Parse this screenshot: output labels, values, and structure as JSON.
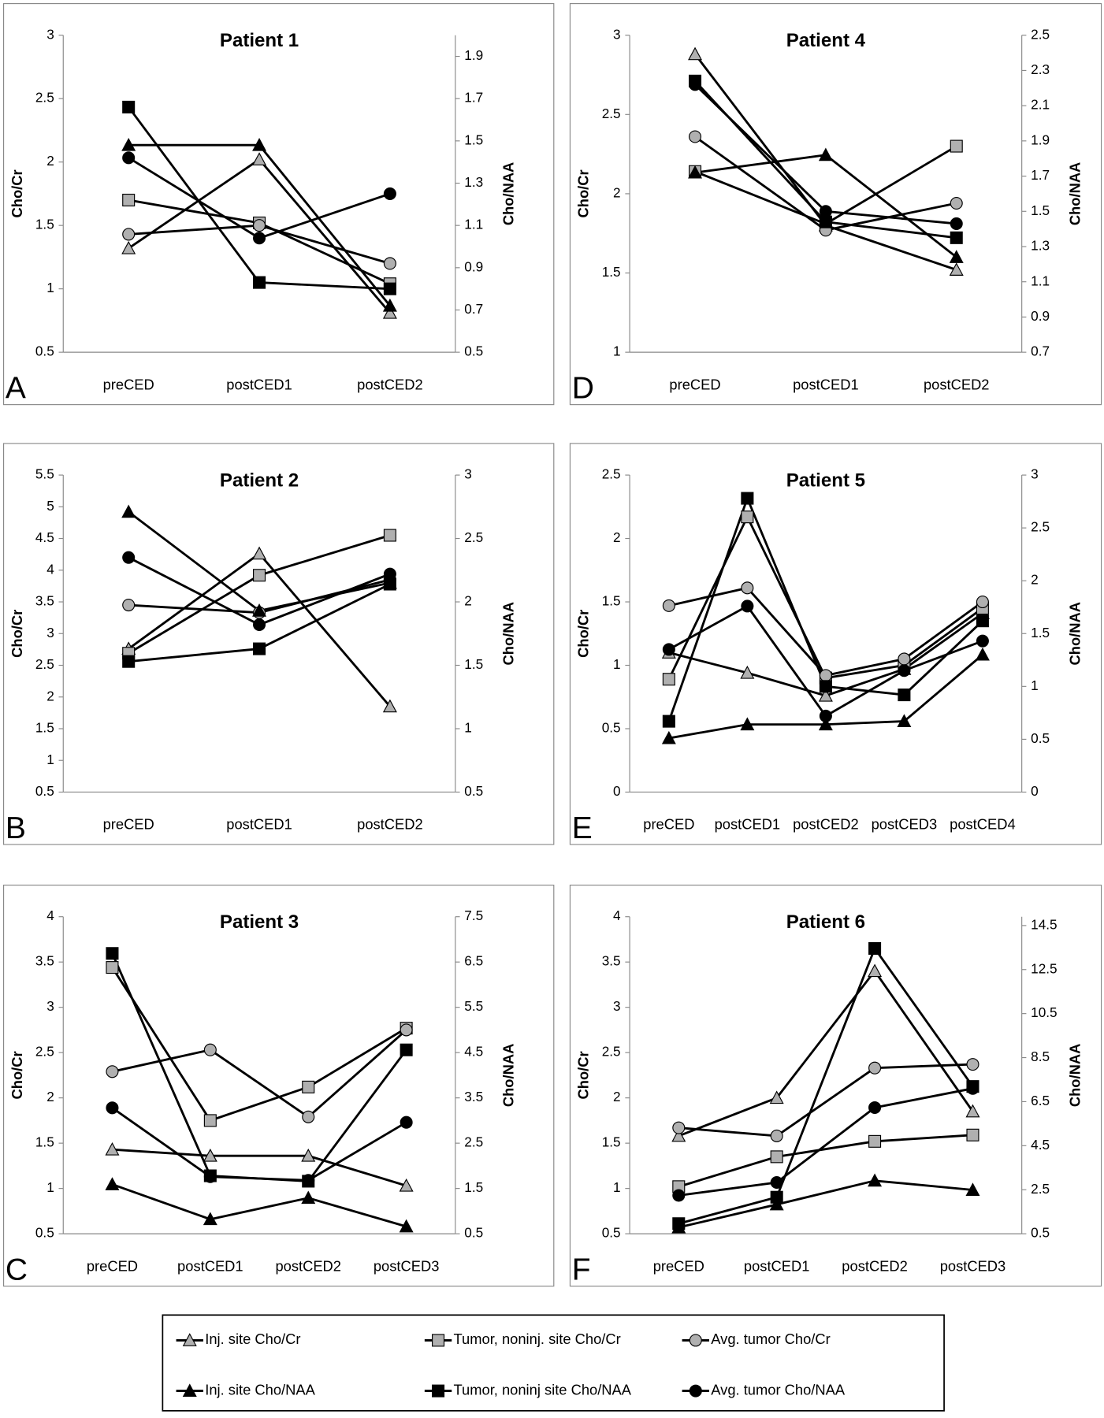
{
  "chart_data": [
    {
      "type": "line",
      "title": "Patient 1",
      "panel_label": "A",
      "y_label": "Cho/Cr",
      "y2_label": "Cho/NAA",
      "categories": [
        "preCED",
        "postCED1",
        "postCED2"
      ],
      "ylim": [
        0.5,
        3
      ],
      "yticks": [
        0.5,
        1,
        1.5,
        2,
        2.5,
        3
      ],
      "y2lim": [
        0.5,
        2.0
      ],
      "y2ticks": [
        0.5,
        0.7,
        0.9,
        1.1,
        1.3,
        1.5,
        1.7,
        1.9
      ],
      "series": [
        {
          "values": [
            1.32,
            2.02,
            0.81
          ]
        },
        {
          "values": [
            1.7,
            1.52,
            1.04
          ]
        },
        {
          "values": [
            1.43,
            1.5,
            1.2
          ]
        },
        {
          "axis": "y2",
          "values": [
            1.48,
            1.48,
            0.72
          ]
        },
        {
          "axis": "y2",
          "values": [
            1.66,
            0.83,
            0.8
          ]
        },
        {
          "axis": "y2",
          "values": [
            1.42,
            1.04,
            1.25
          ]
        }
      ]
    },
    {
      "type": "line",
      "title": "Patient 2",
      "panel_label": "B",
      "y_label": "Cho/Cr",
      "y2_label": "Cho/NAA",
      "categories": [
        "preCED",
        "postCED1",
        "postCED2"
      ],
      "ylim": [
        0.5,
        5.5
      ],
      "yticks": [
        0.5,
        1,
        1.5,
        2,
        2.5,
        3,
        3.5,
        4,
        4.5,
        5,
        5.5
      ],
      "y2lim": [
        0.5,
        3
      ],
      "y2ticks": [
        0.5,
        1,
        1.5,
        2,
        2.5,
        3
      ],
      "series": [
        {
          "values": [
            2.76,
            4.26,
            1.85
          ]
        },
        {
          "values": [
            2.69,
            3.92,
            4.55
          ]
        },
        {
          "values": [
            3.45,
            3.33,
            3.85
          ]
        },
        {
          "axis": "y2",
          "values": [
            2.71,
            1.93,
            2.15
          ]
        },
        {
          "axis": "y2",
          "values": [
            1.53,
            1.63,
            2.14
          ]
        },
        {
          "axis": "y2",
          "values": [
            2.35,
            1.82,
            2.22
          ]
        }
      ]
    },
    {
      "type": "line",
      "title": "Patient 3",
      "panel_label": "C",
      "y_label": "Cho/Cr",
      "y2_label": "Cho/NAA",
      "categories": [
        "preCED",
        "postCED1",
        "postCED2",
        "postCED3"
      ],
      "ylim": [
        0.5,
        4
      ],
      "yticks": [
        0.5,
        1,
        1.5,
        2,
        2.5,
        3,
        3.5,
        4
      ],
      "y2lim": [
        0.5,
        7.5
      ],
      "y2ticks": [
        0.5,
        1.5,
        2.5,
        3.5,
        4.5,
        5.5,
        6.5,
        7.5
      ],
      "series": [
        {
          "values": [
            1.43,
            1.36,
            1.36,
            1.03
          ]
        },
        {
          "values": [
            3.44,
            1.75,
            2.12,
            2.77
          ]
        },
        {
          "values": [
            2.29,
            2.53,
            1.79,
            2.75
          ]
        },
        {
          "axis": "y2",
          "values": [
            1.59,
            0.82,
            1.29,
            0.66
          ]
        },
        {
          "axis": "y2",
          "values": [
            6.69,
            1.78,
            1.66,
            4.56
          ]
        },
        {
          "axis": "y2",
          "values": [
            3.28,
            1.76,
            1.68,
            2.96
          ]
        }
      ]
    },
    {
      "type": "line",
      "title": "Patient 4",
      "panel_label": "D",
      "y_label": "Cho/Cr",
      "y2_label": "Cho/NAA",
      "categories": [
        "preCED",
        "postCED1",
        "postCED2"
      ],
      "ylim": [
        1,
        3
      ],
      "yticks": [
        1,
        1.5,
        2,
        2.5,
        3
      ],
      "y2lim": [
        0.7,
        2.5
      ],
      "y2ticks": [
        0.7,
        0.9,
        1.1,
        1.3,
        1.5,
        1.7,
        1.9,
        2.1,
        2.3,
        2.5
      ],
      "series": [
        {
          "values": [
            2.88,
            1.8,
            1.52
          ]
        },
        {
          "values": [
            2.14,
            1.81,
            2.3
          ]
        },
        {
          "values": [
            2.36,
            1.77,
            1.94
          ]
        },
        {
          "axis": "y2",
          "values": [
            1.72,
            1.82,
            1.24
          ]
        },
        {
          "axis": "y2",
          "values": [
            2.24,
            1.44,
            1.35
          ]
        },
        {
          "axis": "y2",
          "values": [
            2.22,
            1.5,
            1.43
          ]
        }
      ]
    },
    {
      "type": "line",
      "title": "Patient 5",
      "panel_label": "E",
      "y_label": "Cho/Cr",
      "y2_label": "Cho/NAA",
      "categories": [
        "preCED",
        "postCED1",
        "postCED2",
        "postCED3",
        "postCED4"
      ],
      "ylim": [
        0,
        2.5
      ],
      "yticks": [
        0,
        0.5,
        1,
        1.5,
        2,
        2.5
      ],
      "y2lim": [
        0,
        3
      ],
      "y2ticks": [
        0,
        0.5,
        1,
        1.5,
        2,
        2.5,
        3
      ],
      "series": [
        {
          "values": [
            1.1,
            0.94,
            0.76,
            0.97,
            1.41
          ]
        },
        {
          "values": [
            0.89,
            2.17,
            0.9,
            1.0,
            1.45
          ]
        },
        {
          "values": [
            1.47,
            1.61,
            0.92,
            1.05,
            1.5
          ]
        },
        {
          "axis": "y2",
          "values": [
            0.51,
            0.64,
            0.64,
            0.67,
            1.3
          ]
        },
        {
          "axis": "y2",
          "values": [
            0.67,
            2.78,
            1.0,
            0.92,
            1.62
          ]
        },
        {
          "axis": "y2",
          "values": [
            1.35,
            1.76,
            0.72,
            1.15,
            1.43
          ]
        }
      ]
    },
    {
      "type": "line",
      "title": "Patient 6",
      "panel_label": "F",
      "y_label": "Cho/Cr",
      "y2_label": "Cho/NAA",
      "categories": [
        "preCED",
        "postCED1",
        "postCED2",
        "postCED3"
      ],
      "ylim": [
        0.5,
        4
      ],
      "yticks": [
        0.5,
        1,
        1.5,
        2,
        2.5,
        3,
        3.5,
        4
      ],
      "y2lim": [
        0.5,
        14.9
      ],
      "y2ticks": [
        0.5,
        2.5,
        4.5,
        6.5,
        8.5,
        10.5,
        12.5,
        14.5
      ],
      "series": [
        {
          "values": [
            1.58,
            2.0,
            3.4,
            1.85
          ]
        },
        {
          "values": [
            1.02,
            1.35,
            1.52,
            1.59
          ]
        },
        {
          "values": [
            1.67,
            1.58,
            2.33,
            2.37
          ]
        },
        {
          "axis": "y2",
          "values": [
            0.79,
            1.83,
            2.91,
            2.49
          ]
        },
        {
          "axis": "y2",
          "values": [
            0.96,
            2.16,
            13.46,
            7.19
          ]
        },
        {
          "axis": "y2",
          "values": [
            2.24,
            2.83,
            6.23,
            7.1
          ]
        }
      ]
    }
  ],
  "legend": [
    {
      "name": "Inj. site Cho/Cr",
      "color": "#b0b0b0",
      "marker": "triangle"
    },
    {
      "name": "Tumor, noninj. site Cho/Cr",
      "color": "#b0b0b0",
      "marker": "square"
    },
    {
      "name": "Avg. tumor Cho/Cr",
      "color": "#b0b0b0",
      "marker": "circle"
    },
    {
      "name": "Inj. site Cho/NAA",
      "color": "#000000",
      "marker": "triangle"
    },
    {
      "name": "Tumor, noninj site Cho/NAA",
      "color": "#000000",
      "marker": "square"
    },
    {
      "name": "Avg. tumor Cho/NAA",
      "color": "#000000",
      "marker": "circle"
    }
  ]
}
